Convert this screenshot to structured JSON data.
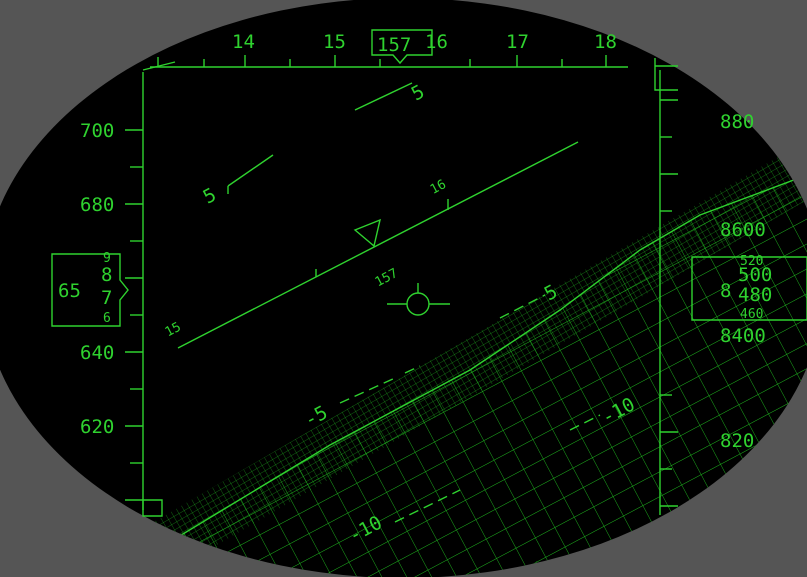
{
  "heading": {
    "current": "157",
    "ticks": [
      "14",
      "15",
      "16",
      "17",
      "18"
    ]
  },
  "airspeed": {
    "current": "65",
    "drum": [
      "9",
      "8",
      "7",
      "6"
    ],
    "ticks": [
      "700",
      "680",
      "640",
      "620"
    ]
  },
  "altitude": {
    "current": "8",
    "drum": [
      "520",
      "500",
      "480",
      "460"
    ],
    "ticks": [
      "880",
      "8600",
      "8400",
      "820"
    ]
  },
  "pitch_ladder": {
    "up_labels": [
      "5",
      "5"
    ],
    "down_labels": [
      "-5",
      "5",
      "-10",
      "-10"
    ]
  },
  "horizon": {
    "left_label": "15",
    "mid_label": "16",
    "heading_mark": "157"
  },
  "colors": {
    "hud_green": "#2fd22f",
    "sky": "#000000",
    "frame": "#555555"
  }
}
